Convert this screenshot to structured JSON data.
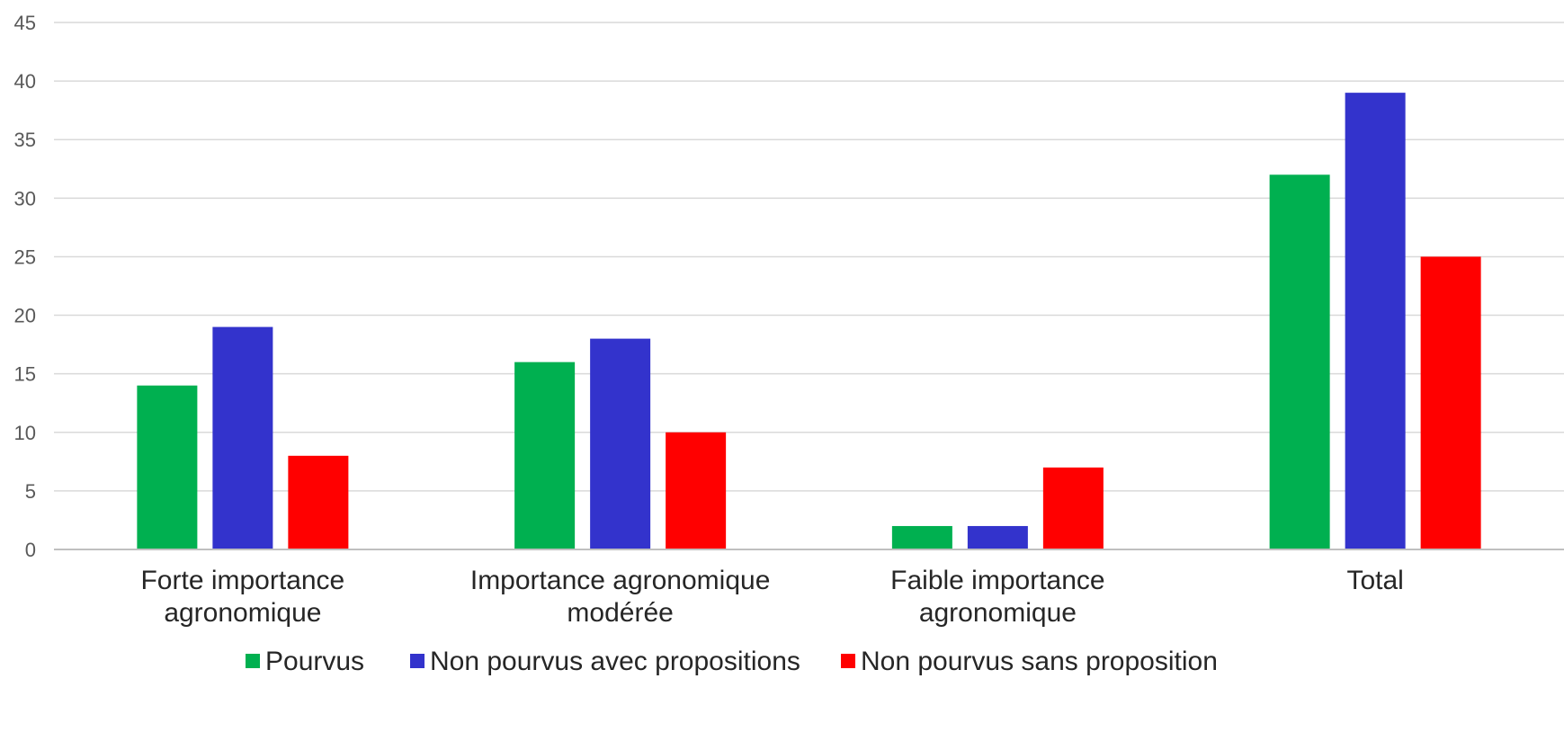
{
  "chart_data": {
    "type": "bar",
    "title": "",
    "xlabel": "",
    "ylabel": "",
    "ylim": [
      0,
      45
    ],
    "yticks": [
      0,
      5,
      10,
      15,
      20,
      25,
      30,
      35,
      40,
      45
    ],
    "grid": true,
    "legend_position": "bottom",
    "categories": [
      [
        "Forte importance",
        "agronomique"
      ],
      [
        "Importance agronomique",
        "modérée"
      ],
      [
        "Faible importance",
        "agronomique"
      ],
      [
        "Total"
      ]
    ],
    "series": [
      {
        "name": "Pourvus",
        "color": "#00b050",
        "values": [
          14,
          16,
          2,
          32
        ]
      },
      {
        "name": "Non pourvus avec propositions",
        "color": "#3333cc",
        "values": [
          19,
          18,
          2,
          39
        ]
      },
      {
        "name": "Non pourvus sans proposition",
        "color": "#ff0000",
        "values": [
          8,
          10,
          7,
          25
        ]
      }
    ]
  }
}
